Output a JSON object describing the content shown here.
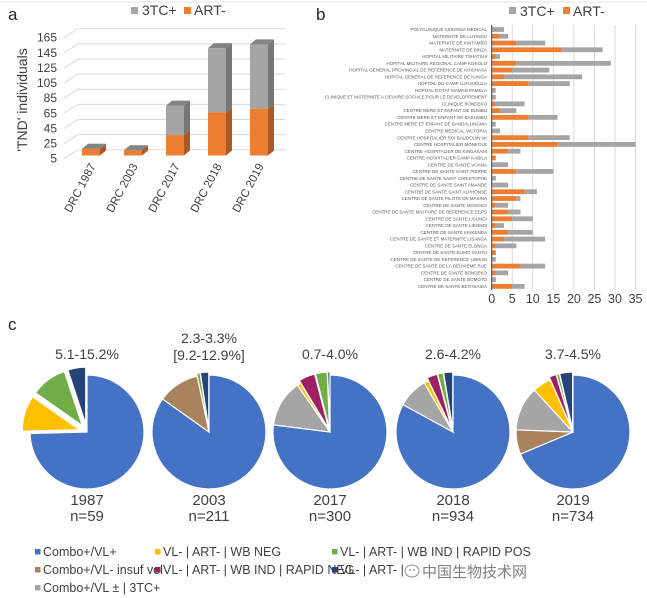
{
  "panels": {
    "a": {
      "letter": "a"
    },
    "b": {
      "letter": "b"
    },
    "c": {
      "letter": "c"
    }
  },
  "watermark": {
    "text": "中国生物技术网",
    "icon": "wechat-bubble-icon"
  },
  "chart_data": [
    {
      "panel": "a",
      "type": "bar",
      "orientation": "vertical",
      "stacked": true,
      "style_3d": true,
      "title": "",
      "xlabel": "",
      "ylabel": "'TND' individuals",
      "categories": [
        "DRC 1987",
        "DRC 2003",
        "DRC 2017",
        "DRC 2018",
        "DRC 2019"
      ],
      "series": [
        {
          "name": "ART-",
          "color": "#ED7D31",
          "values": [
            9,
            7,
            27,
            57,
            62
          ]
        },
        {
          "name": "3TC+",
          "color": "#A5A5A5",
          "values": [
            0,
            0,
            39,
            85,
            85
          ]
        }
      ],
      "legend": {
        "placement": "top",
        "items": [
          {
            "name": "3TC+",
            "color": "#A5A5A5"
          },
          {
            "name": "ART-",
            "color": "#ED7D31"
          }
        ]
      },
      "yticks": [
        5,
        25,
        45,
        65,
        85,
        105,
        125,
        145,
        165
      ],
      "ylim": [
        5,
        165
      ],
      "grid": true
    },
    {
      "panel": "b",
      "type": "bar",
      "orientation": "horizontal",
      "stacked": true,
      "title": "",
      "xlabel": "",
      "ylabel": "",
      "categories": [
        "POLYCLINIQUE ASSOSSA MEDICAL",
        "MATERNITE DE LUYINDU",
        "MATERNITE DE KINTAMBO",
        "MATERNITE DE BINZA",
        "HOPITAL MILITAIRE TSHATSHI",
        "HOPITAL MILITAIRE REGIONAL CAMP KOKOLO",
        "HOPITAL GENERAL PROVINCIAL DE REFERENCE DE KINSHASA",
        "HOPITAL GENERAL DE REFERENCE DE KANGA",
        "HOPITAL DU CAMP LUFUNGULA",
        "HOPITAL D'ETAT MAMAN PAMELA",
        "CLINIQUE ET MATERNITE A OEUVRE SOCIALE POUR LE DEVELOPPEMENT",
        "CLINIQUE BONDEKO",
        "CENTRE MERE ET ENFANT DE BUMBU",
        "CENTRE MERE ET ENFANT DE BARUMBU",
        "CENTRE MERE ET ENFANT DE BANDALUNGWA",
        "CENTRE MEDICAL VICTORIA",
        "CENTRE HOSPITALIER ROI BAUDOUIN Ier",
        "CENTRE HOSPITALIER MONKOLE",
        "CENTRE HOSPITALIER DE KINGASANI",
        "CENTRE HOSPITALIER CAMP KABILA",
        "CENTRE DE SANTE VIJANA",
        "CENTRE DE SANTE SAINT PIERRE",
        "CENTRE DE SANTE SAINT CHRISTOPHE",
        "CENTRE DE SANTE SAINT AMANDE",
        "CENTRE DE SANTE SAINT ALPHONSE",
        "CENTRE DE SANTE PILOTE DE MASINA",
        "CENTRE DE SANTE MOSOKO",
        "CENTRE DE SANTE MILITAIRE DE REFERENCE EEPS",
        "CENTRE DE SANTE LISUNGI",
        "CENTRE DE SANTE LIBONDI",
        "CENTRE DE SANTE KINKENDA",
        "CENTRE DE SANTE ET MATERNITE LISANGA",
        "CENTRE DE SANTE ELONGA",
        "CENTRE DE SANTE ELIMO SANTU",
        "CENTRE DE SANTE DE REFERENCE LIBIKISI",
        "CENTRE DE SANTE DE LA DEUXIEME RUE",
        "CENTRE DE SANTE BONDEKO",
        "CENTRE DE SANTE BOMOTO",
        "CENTRE DE SANTE BETHSAIDA"
      ],
      "series": [
        {
          "name": "ART-",
          "color": "#ED7D31",
          "values": [
            0,
            2,
            6,
            17,
            1,
            6,
            5,
            3,
            9,
            0,
            0,
            1,
            2,
            9,
            0,
            0,
            9,
            16,
            4,
            1,
            0,
            6,
            0,
            0,
            8,
            6,
            1,
            4,
            5,
            1,
            4,
            3,
            1,
            1,
            0,
            7,
            1,
            0,
            5
          ]
        },
        {
          "name": "3TC+",
          "color": "#A5A5A5",
          "values": [
            3,
            2,
            7,
            10,
            1,
            23,
            9,
            19,
            10,
            1,
            1,
            7,
            4,
            7,
            1,
            2,
            10,
            19,
            3,
            0,
            4,
            9,
            1,
            4,
            3,
            1,
            3,
            3,
            5,
            2,
            6,
            10,
            5,
            0,
            1,
            6,
            3,
            1,
            3
          ]
        }
      ],
      "legend": {
        "placement": "top-right",
        "items": [
          {
            "name": "3TC+",
            "color": "#A5A5A5"
          },
          {
            "name": "ART-",
            "color": "#ED7D31"
          }
        ]
      },
      "xticks": [
        0,
        5,
        10,
        15,
        20,
        25,
        30,
        35
      ],
      "xlim": [
        0,
        35
      ],
      "grid": true
    },
    {
      "panel": "c",
      "type": "pie",
      "title": "",
      "categories": [
        {
          "name": "Combo+/VL+",
          "color": "#4472C4"
        },
        {
          "name": "Combo+/VL- insuf vol",
          "color": "#A8835E"
        },
        {
          "name": "Combo+/VL ± | 3TC+",
          "color": "#A5A5A5"
        },
        {
          "name": "VL- | ART- | WB NEG",
          "color": "#FFC000"
        },
        {
          "name": "VL- | ART- | WB IND | RAPID NEG",
          "color": "#9E1F63"
        },
        {
          "name": "VL- | ART- | WB IND | RAPID POS",
          "color": "#70AD47"
        },
        {
          "name": "VL- | ART- | WB POS",
          "color": "#264478"
        }
      ],
      "pies": [
        {
          "year": "1987",
          "n_label": "n=59",
          "range_lines": [
            "5.1-15.2%"
          ],
          "values": [
            44,
            0,
            0,
            6,
            0,
            6,
            3
          ]
        },
        {
          "year": "2003",
          "n_label": "n=211",
          "range_lines": [
            "2.3-3.3%",
            "[9.2-12.9%]"
          ],
          "values": [
            179,
            25,
            0,
            0,
            0,
            2,
            5
          ]
        },
        {
          "year": "2017",
          "n_label": "n=300",
          "range_lines": [
            "0.7-4.0%"
          ],
          "values": [
            231,
            0,
            40,
            3,
            14,
            10,
            2
          ]
        },
        {
          "year": "2018",
          "n_label": "n=934",
          "range_lines": [
            "2.6-4.2%"
          ],
          "values": [
            775,
            0,
            80,
            12,
            28,
            15,
            24
          ]
        },
        {
          "year": "2019",
          "n_label": "n=734",
          "range_lines": [
            "3.7-4.5%"
          ],
          "values": [
            504,
            51,
            92,
            39,
            15,
            6,
            27
          ]
        }
      ],
      "legend": {
        "placement": "bottom"
      }
    }
  ]
}
